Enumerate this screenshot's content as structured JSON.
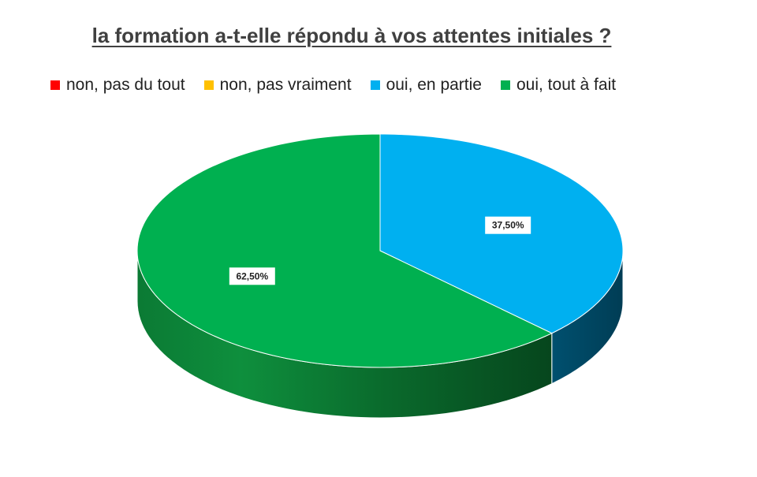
{
  "chart_data": {
    "type": "pie",
    "title": "la formation a-t-elle répondu à vos attentes initiales ?",
    "categories": [
      "non, pas du tout",
      "non, pas vraiment",
      "oui, en partie",
      "oui, tout à fait"
    ],
    "values": [
      0,
      0,
      37.5,
      62.5
    ],
    "data_labels": [
      "",
      "",
      "37,50%",
      "62,50%"
    ],
    "colors": [
      "#ff0000",
      "#ffc000",
      "#00b0f0",
      "#00b050"
    ],
    "legend_position": "top",
    "three_d": true
  }
}
